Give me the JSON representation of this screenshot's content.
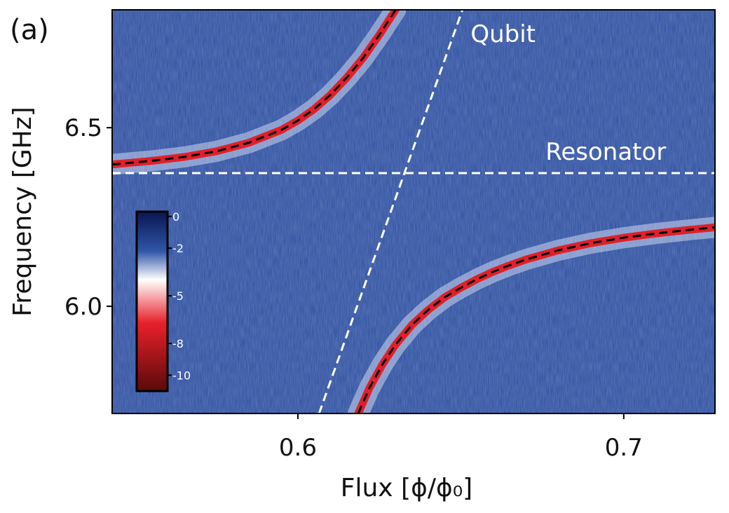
{
  "chart_data": {
    "type": "heatmap",
    "panel_label": "(a)",
    "xlabel": "Flux [ϕ/ϕ₀]",
    "ylabel": "Frequency [GHz]",
    "xlim": [
      0.543,
      0.728
    ],
    "ylim": [
      5.7,
      6.83
    ],
    "xticks": [
      0.6,
      0.7
    ],
    "xtick_labels": [
      "0.6",
      "0.7"
    ],
    "yticks": [
      6.0,
      6.5
    ],
    "ytick_labels": [
      "6.0",
      "6.5"
    ],
    "colorbar": {
      "ticks": [
        0,
        -2,
        -5,
        -8,
        -10
      ],
      "tick_labels": [
        "0",
        "-2",
        "-5",
        "-8",
        "-10"
      ],
      "range": [
        -11,
        0.3
      ],
      "colors": [
        "#0a1550",
        "#2f56a8",
        "#ffffff",
        "#e8202a",
        "#5a0a0a"
      ]
    },
    "background_color": "#2b4d9e",
    "resonator_frequency": 6.373,
    "qubit_line": {
      "x": [
        0.6065,
        0.6505
      ],
      "y": [
        5.7,
        6.83
      ]
    },
    "upper_branch": {
      "x": [
        0.543,
        0.555,
        0.565,
        0.575,
        0.585,
        0.595,
        0.6,
        0.605,
        0.61,
        0.615,
        0.62,
        0.625,
        0.63
      ],
      "y": [
        6.397,
        6.407,
        6.418,
        6.434,
        6.458,
        6.494,
        6.52,
        6.552,
        6.592,
        6.64,
        6.695,
        6.76,
        6.83
      ]
    },
    "lower_branch": {
      "x": [
        0.6185,
        0.622,
        0.626,
        0.63,
        0.635,
        0.64,
        0.645,
        0.65,
        0.655,
        0.66,
        0.665,
        0.67,
        0.68,
        0.69,
        0.7,
        0.71,
        0.72,
        0.728
      ],
      "y": [
        5.7,
        5.772,
        5.838,
        5.893,
        5.948,
        5.99,
        6.025,
        6.052,
        6.076,
        6.097,
        6.115,
        6.131,
        6.157,
        6.177,
        6.192,
        6.204,
        6.214,
        6.221
      ]
    },
    "annotations": [
      {
        "text": "Qubit",
        "x": 0.653,
        "y": 6.74
      },
      {
        "text": "Resonator",
        "x": 0.676,
        "y": 6.41
      }
    ],
    "line_colors": {
      "model": "#000000",
      "bare": "#ffffff"
    }
  }
}
